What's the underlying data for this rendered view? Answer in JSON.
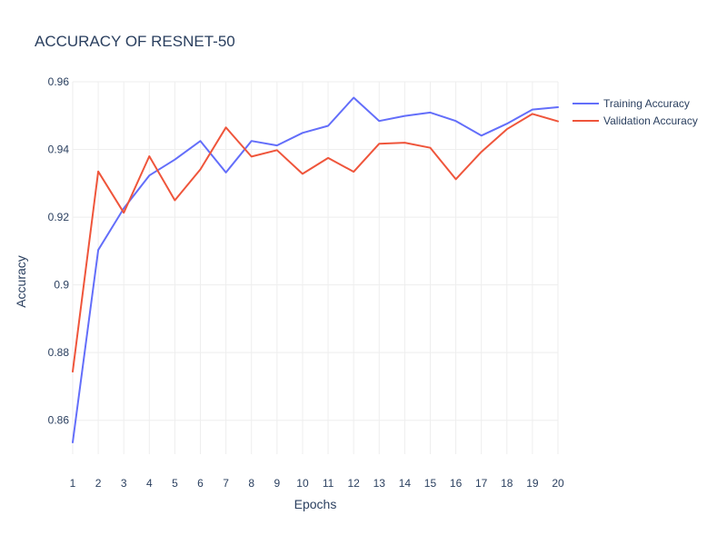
{
  "chart_data": {
    "type": "line",
    "title": "ACCURACY OF RESNET-50",
    "xlabel": "Epochs",
    "ylabel": "Accuracy",
    "xlim": [
      1,
      20
    ],
    "ylim": [
      0.85,
      0.96
    ],
    "x": [
      1,
      2,
      3,
      4,
      5,
      6,
      7,
      8,
      9,
      10,
      11,
      12,
      13,
      14,
      15,
      16,
      17,
      18,
      19,
      20
    ],
    "x_ticks": [
      1,
      2,
      3,
      4,
      5,
      6,
      7,
      8,
      9,
      10,
      11,
      12,
      13,
      14,
      15,
      16,
      17,
      18,
      19,
      20
    ],
    "y_ticks": [
      0.86,
      0.88,
      0.9,
      0.92,
      0.94,
      0.96
    ],
    "y_tick_labels": [
      "0.86",
      "0.88",
      "0.9",
      "0.92",
      "0.94",
      "0.96"
    ],
    "grid": true,
    "legend_position": "top-right",
    "series": [
      {
        "name": "Training Accuracy",
        "color": "#636efa",
        "values": [
          0.8535,
          0.9103,
          0.9226,
          0.9323,
          0.937,
          0.9425,
          0.9332,
          0.9425,
          0.9412,
          0.9449,
          0.947,
          0.9553,
          0.9484,
          0.9499,
          0.9509,
          0.9484,
          0.9441,
          0.9476,
          0.9518,
          0.9525
        ]
      },
      {
        "name": "Validation Accuracy",
        "color": "#ef553b",
        "values": [
          0.8744,
          0.9335,
          0.9213,
          0.938,
          0.925,
          0.9341,
          0.9465,
          0.9379,
          0.9398,
          0.9328,
          0.9375,
          0.9334,
          0.9417,
          0.942,
          0.9405,
          0.9312,
          0.9393,
          0.946,
          0.9505,
          0.9483
        ]
      }
    ]
  }
}
